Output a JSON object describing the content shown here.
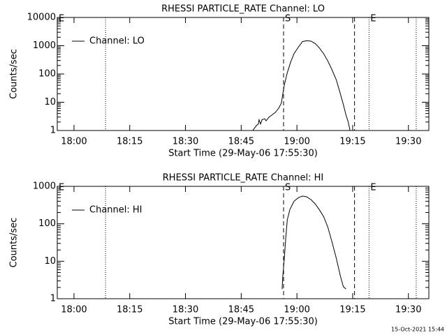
{
  "chart_data": [
    {
      "type": "line",
      "title": "RHESSI PARTICLE_RATE Channel: LO",
      "x_label": "Start Time (29-May-06 17:55:30)",
      "y_label": "Counts/sec",
      "log_y": true,
      "legend": "upper left",
      "xlim": [
        1075.5,
        1175.5
      ],
      "ylim": [
        1,
        10000
      ],
      "xticks": [
        {
          "value": 1080,
          "label": "18:00"
        },
        {
          "value": 1095,
          "label": "18:15"
        },
        {
          "value": 1110,
          "label": "18:30"
        },
        {
          "value": 1125,
          "label": "18:45"
        },
        {
          "value": 1140,
          "label": "19:00"
        },
        {
          "value": 1155,
          "label": "19:15"
        },
        {
          "value": 1170,
          "label": "19:30"
        }
      ],
      "yticks": [
        1,
        10,
        100,
        1000,
        10000
      ],
      "dotted_lines": [
        1088.5,
        1159.4,
        1172.1
      ],
      "dashed_lines": [
        1136.4,
        1155.5
      ],
      "flags": [
        {
          "x": 1075.5,
          "label": "E"
        },
        {
          "x": 1136.4,
          "label": "S"
        },
        {
          "x": 1159.4,
          "label": "E"
        }
      ],
      "x": [
        1128.1,
        1129.1,
        1129.6,
        1129.8,
        1130.2,
        1130.6,
        1131.3,
        1131.7,
        1132.5,
        1133.2,
        1134.2,
        1135.1,
        1135.8,
        1136.2,
        1136.6,
        1137.4,
        1138.3,
        1139.2,
        1140.4,
        1141.5,
        1142.6,
        1143.8,
        1144.9,
        1146.0,
        1147.2,
        1148.3,
        1149.4,
        1150.6,
        1151.7,
        1152.5,
        1153.2,
        1153.8,
        1154.3
      ],
      "series": [
        {
          "name": "Channel: LO",
          "color": "#000000",
          "values": [
            1,
            1.5,
            1.7,
            2.4,
            1.7,
            2.4,
            2.6,
            2.2,
            3,
            3.5,
            4.4,
            6.2,
            9.3,
            19.6,
            41,
            110,
            260,
            520,
            900,
            1400,
            1500,
            1450,
            1200,
            850,
            520,
            290,
            145,
            62,
            19.6,
            8.3,
            3.5,
            2,
            1
          ]
        }
      ]
    },
    {
      "type": "line",
      "title": "RHESSI PARTICLE_RATE Channel: HI",
      "x_label": "Start Time (29-May-06 17:55:30)",
      "y_label": "Counts/sec",
      "log_y": true,
      "legend": "upper left",
      "xlim": [
        1075.5,
        1175.5
      ],
      "ylim": [
        1,
        1000
      ],
      "xticks": [
        {
          "value": 1080,
          "label": "18:00"
        },
        {
          "value": 1095,
          "label": "18:15"
        },
        {
          "value": 1110,
          "label": "18:30"
        },
        {
          "value": 1125,
          "label": "18:45"
        },
        {
          "value": 1140,
          "label": "19:00"
        },
        {
          "value": 1155,
          "label": "19:15"
        },
        {
          "value": 1170,
          "label": "19:30"
        }
      ],
      "yticks": [
        1,
        10,
        100,
        1000
      ],
      "dotted_lines": [
        1088.5,
        1159.4,
        1172.1
      ],
      "dashed_lines": [
        1136.4,
        1155.5
      ],
      "flags": [
        {
          "x": 1075.5,
          "label": "E"
        },
        {
          "x": 1136.4,
          "label": "S"
        },
        {
          "x": 1159.4,
          "label": "E"
        }
      ],
      "x": [
        1136.0,
        1136.2,
        1136.6,
        1137.0,
        1137.4,
        1138.1,
        1139.2,
        1140.4,
        1141.5,
        1142.6,
        1143.8,
        1144.9,
        1146.0,
        1147.2,
        1148.3,
        1149.4,
        1150.6,
        1151.7,
        1152.5,
        1153.2
      ],
      "series": [
        {
          "name": "Channel: HI",
          "color": "#000000",
          "values": [
            1.8,
            4,
            12,
            43,
            126,
            240,
            400,
            500,
            550,
            525,
            440,
            340,
            240,
            155,
            82,
            34,
            12,
            4,
            2.1,
            1.8
          ]
        }
      ]
    }
  ],
  "footer": "15-Oct-2021 15:44"
}
